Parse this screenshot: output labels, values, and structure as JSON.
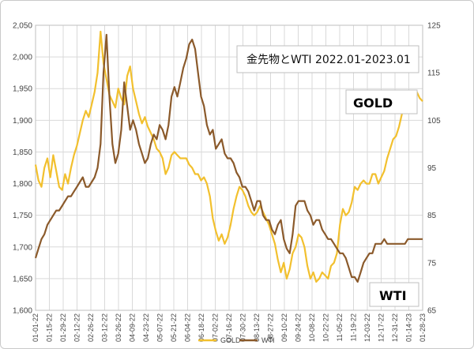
{
  "chart_data": {
    "type": "line",
    "title": "金先物とWTI  2022.01-2023.01",
    "grid": true,
    "colors": {
      "gold": "#f2c02e",
      "wti": "#8b5a2b",
      "grid": "#d9d9d9"
    },
    "y_left": {
      "ylim": [
        1600,
        2050
      ],
      "ticks": [
        "1,600",
        "1,650",
        "1,700",
        "1,750",
        "1,800",
        "1,850",
        "1,900",
        "1,950",
        "2,000",
        "2,050"
      ]
    },
    "y_right": {
      "ylim": [
        65,
        125
      ],
      "ticks": [
        "65",
        "75",
        "85",
        "95",
        "105",
        "115",
        "125"
      ]
    },
    "x_ticks": [
      "01-01-22",
      "01-15-22",
      "01-29-22",
      "02-12-22",
      "02-26-22",
      "03-12-22",
      "03-26-22",
      "04-09-22",
      "04-23-22",
      "05-07-22",
      "05-21-22",
      "06-04-22",
      "06-18-22",
      "07-02-22",
      "07-16-22",
      "07-30-22",
      "08-13-22",
      "08-27-22",
      "09-10-22",
      "09-24-22",
      "10-08-22",
      "10-22-22",
      "11-05-22",
      "11-19-22",
      "12-03-22",
      "12-17-22",
      "12-31-22",
      "01-14-23",
      "01-28-23"
    ],
    "annotations": {
      "gold_label": "GOLD",
      "wti_label": "WTI"
    },
    "legend": [
      "GOLD",
      "WTI"
    ],
    "series": [
      {
        "name": "GOLD",
        "axis": "left",
        "values": [
          1830,
          1805,
          1795,
          1825,
          1840,
          1810,
          1845,
          1820,
          1795,
          1790,
          1815,
          1800,
          1825,
          1845,
          1860,
          1880,
          1900,
          1915,
          1905,
          1925,
          1945,
          1975,
          2040,
          1990,
          1965,
          1940,
          1930,
          1920,
          1950,
          1935,
          1925,
          1970,
          1985,
          1950,
          1930,
          1910,
          1895,
          1905,
          1890,
          1880,
          1870,
          1855,
          1850,
          1840,
          1815,
          1825,
          1845,
          1850,
          1845,
          1840,
          1840,
          1840,
          1830,
          1825,
          1815,
          1815,
          1805,
          1810,
          1800,
          1780,
          1745,
          1725,
          1710,
          1720,
          1705,
          1715,
          1735,
          1760,
          1780,
          1795,
          1790,
          1780,
          1765,
          1755,
          1750,
          1755,
          1765,
          1755,
          1745,
          1735,
          1720,
          1705,
          1680,
          1660,
          1675,
          1650,
          1665,
          1690,
          1700,
          1720,
          1715,
          1700,
          1670,
          1650,
          1660,
          1645,
          1650,
          1660,
          1655,
          1650,
          1670,
          1675,
          1690,
          1735,
          1760,
          1750,
          1755,
          1770,
          1795,
          1790,
          1800,
          1805,
          1800,
          1800,
          1815,
          1815,
          1800,
          1810,
          1820,
          1840,
          1855,
          1870,
          1875,
          1890,
          1910,
          1920,
          1925,
          1920,
          1930,
          1945,
          1935,
          1930
        ]
      },
      {
        "name": "WTI",
        "axis": "right",
        "values": [
          76,
          78,
          80,
          81,
          83,
          84,
          85,
          86,
          86,
          87,
          88,
          89,
          89,
          90,
          91,
          92,
          93,
          91,
          91,
          92,
          93,
          95,
          100,
          115,
          123,
          110,
          100,
          96,
          98,
          103,
          113,
          108,
          103,
          105,
          103,
          100,
          98,
          96,
          97,
          100,
          102,
          101,
          104,
          103,
          101,
          104,
          110,
          112,
          110,
          113,
          116,
          118,
          121,
          122,
          120,
          115,
          110,
          108,
          104,
          102,
          103,
          99,
          100,
          101,
          98,
          97,
          97,
          96,
          94,
          93,
          91,
          91,
          90,
          88,
          86,
          88,
          88,
          85,
          84,
          84,
          82,
          81,
          83,
          84,
          80,
          78,
          77,
          81,
          87,
          88,
          88,
          88,
          86,
          85,
          83,
          84,
          84,
          82,
          81,
          80,
          80,
          79,
          78,
          77,
          77,
          76,
          74,
          72,
          72,
          71,
          73,
          75,
          76,
          77,
          77,
          79,
          79,
          79,
          80,
          79,
          79,
          79,
          79,
          79,
          79,
          79,
          80,
          80,
          80,
          80,
          80,
          80
        ]
      }
    ]
  }
}
